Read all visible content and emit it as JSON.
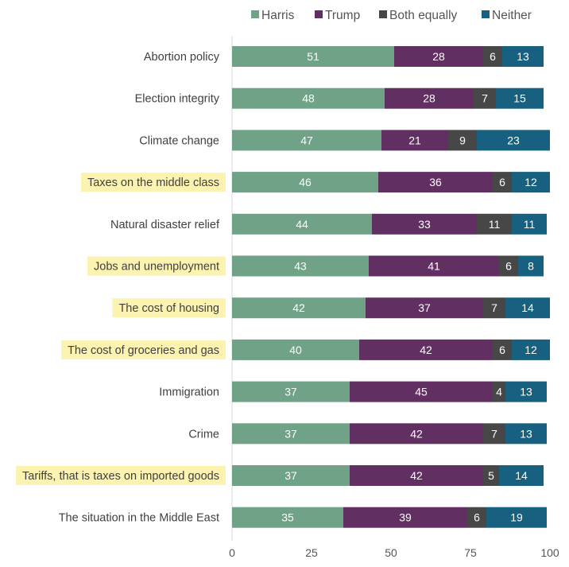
{
  "chart_data": {
    "type": "bar",
    "orientation": "horizontal",
    "stacked": true,
    "title": "",
    "xlabel": "",
    "ylabel": "",
    "xlim": [
      0,
      100
    ],
    "xticks": [
      0,
      25,
      50,
      75,
      100
    ],
    "legend_position": "top",
    "categories": [
      "Abortion policy",
      "Election integrity",
      "Climate change",
      "Taxes on the middle class",
      "Natural disaster relief",
      "Jobs and unemployment",
      "The cost of housing",
      "The cost of groceries and gas",
      "Immigration",
      "Crime",
      "Tariffs, that is taxes on imported goods",
      "The situation in the Middle East"
    ],
    "highlighted": [
      false,
      false,
      false,
      true,
      false,
      true,
      true,
      true,
      false,
      false,
      true,
      false
    ],
    "highlight_color": "#fdf3b0",
    "series": [
      {
        "name": "Harris",
        "color": "#6fa287",
        "values": [
          51,
          48,
          47,
          46,
          44,
          43,
          42,
          40,
          37,
          37,
          37,
          35
        ]
      },
      {
        "name": "Trump",
        "color": "#622f62",
        "values": [
          28,
          28,
          21,
          36,
          33,
          41,
          37,
          42,
          45,
          42,
          42,
          39
        ]
      },
      {
        "name": "Both equally",
        "color": "#474747",
        "values": [
          6,
          7,
          9,
          6,
          11,
          6,
          7,
          6,
          4,
          7,
          5,
          6
        ]
      },
      {
        "name": "Neither",
        "color": "#17607f",
        "values": [
          13,
          15,
          23,
          12,
          11,
          8,
          14,
          12,
          13,
          13,
          14,
          19
        ]
      }
    ]
  }
}
